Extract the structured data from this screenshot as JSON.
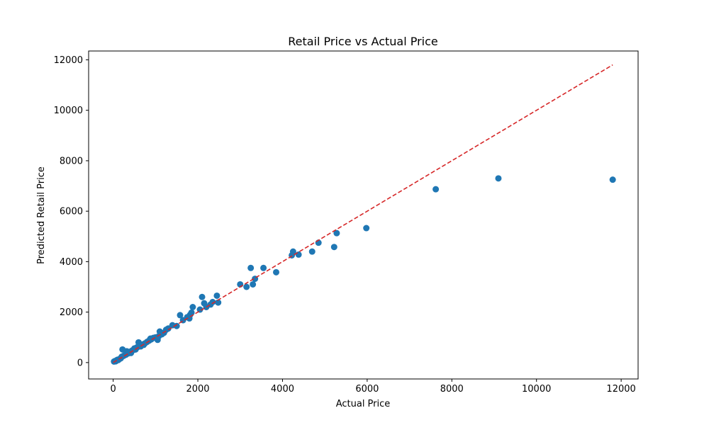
{
  "chart_data": {
    "type": "scatter",
    "title": "Retail Price vs Actual Price",
    "xlabel": "Actual Price",
    "ylabel": "Predicted Retail Price",
    "xlim": [
      -580,
      12400
    ],
    "ylim": [
      -650,
      12350
    ],
    "x_ticks": [
      0,
      2000,
      4000,
      6000,
      8000,
      10000,
      12000
    ],
    "y_ticks": [
      0,
      2000,
      4000,
      6000,
      8000,
      10000,
      12000
    ],
    "grid": false,
    "colors": {
      "points": "#1f77b4",
      "reference_line": "#d62728"
    },
    "reference_line": {
      "style": "dashed",
      "from": [
        0,
        0
      ],
      "to": [
        11800,
        11800
      ]
    },
    "series": [
      {
        "points": [
          [
            20,
            40
          ],
          [
            40,
            60
          ],
          [
            60,
            50
          ],
          [
            80,
            90
          ],
          [
            100,
            110
          ],
          [
            120,
            100
          ],
          [
            150,
            140
          ],
          [
            180,
            170
          ],
          [
            200,
            230
          ],
          [
            220,
            520
          ],
          [
            240,
            260
          ],
          [
            260,
            280
          ],
          [
            300,
            310
          ],
          [
            320,
            450
          ],
          [
            350,
            360
          ],
          [
            380,
            400
          ],
          [
            400,
            430
          ],
          [
            420,
            380
          ],
          [
            450,
            480
          ],
          [
            480,
            500
          ],
          [
            500,
            560
          ],
          [
            530,
            520
          ],
          [
            560,
            600
          ],
          [
            580,
            620
          ],
          [
            600,
            800
          ],
          [
            620,
            650
          ],
          [
            650,
            640
          ],
          [
            700,
            720
          ],
          [
            720,
            700
          ],
          [
            750,
            760
          ],
          [
            800,
            820
          ],
          [
            850,
            870
          ],
          [
            880,
            950
          ],
          [
            900,
            920
          ],
          [
            950,
            980
          ],
          [
            1000,
            1000
          ],
          [
            1050,
            900
          ],
          [
            1080,
            1050
          ],
          [
            1100,
            1230
          ],
          [
            1150,
            1120
          ],
          [
            1200,
            1180
          ],
          [
            1250,
            1300
          ],
          [
            1300,
            1350
          ],
          [
            1400,
            1480
          ],
          [
            1500,
            1450
          ],
          [
            1580,
            1880
          ],
          [
            1650,
            1680
          ],
          [
            1750,
            1800
          ],
          [
            1800,
            1750
          ],
          [
            1820,
            1900
          ],
          [
            1850,
            1980
          ],
          [
            1880,
            2200
          ],
          [
            2050,
            2100
          ],
          [
            2100,
            2600
          ],
          [
            2150,
            2350
          ],
          [
            2200,
            2200
          ],
          [
            2300,
            2300
          ],
          [
            2350,
            2400
          ],
          [
            2450,
            2650
          ],
          [
            2480,
            2380
          ],
          [
            3000,
            3100
          ],
          [
            3150,
            3000
          ],
          [
            3250,
            3750
          ],
          [
            3300,
            3100
          ],
          [
            3350,
            3320
          ],
          [
            3550,
            3750
          ],
          [
            3850,
            3580
          ],
          [
            4220,
            4250
          ],
          [
            4250,
            4400
          ],
          [
            4380,
            4280
          ],
          [
            4700,
            4400
          ],
          [
            4850,
            4750
          ],
          [
            5220,
            4580
          ],
          [
            5280,
            5130
          ],
          [
            5980,
            5330
          ],
          [
            7620,
            6870
          ],
          [
            9100,
            7300
          ],
          [
            11800,
            7250
          ]
        ]
      }
    ]
  }
}
